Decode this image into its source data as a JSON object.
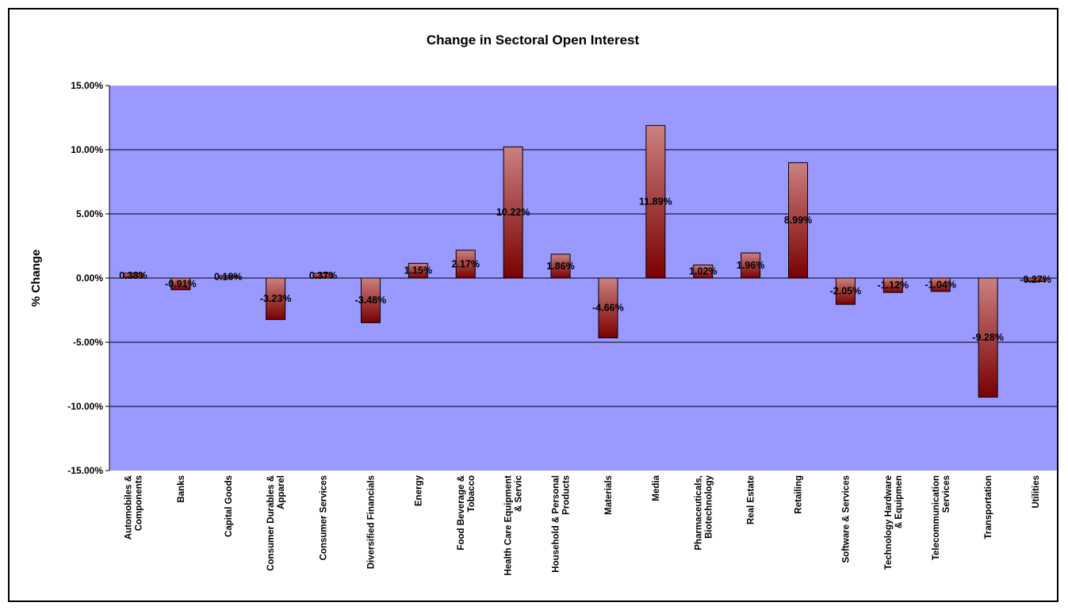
{
  "chart_data": {
    "type": "bar",
    "title": "Change in Sectoral Open Interest",
    "xlabel": "",
    "ylabel": "% Change",
    "ylim": [
      -15,
      15
    ],
    "yticks": [
      "15.00%",
      "10.00%",
      "5.00%",
      "0.00%",
      "-5.00%",
      "-10.00%",
      "-15.00%"
    ],
    "grid": true,
    "legend": "none",
    "categories": [
      [
        "Automobiles &",
        "Components"
      ],
      [
        "Banks"
      ],
      [
        "Capital Goods"
      ],
      [
        "Consumer Durables &",
        "Apparel"
      ],
      [
        "Consumer Services"
      ],
      [
        "Diversified Financials"
      ],
      [
        "Energy"
      ],
      [
        "Food Beverage &",
        "Tobacco"
      ],
      [
        "Health Care Equipment",
        "& Servic"
      ],
      [
        "Household & Personal",
        "Products"
      ],
      [
        "Materials"
      ],
      [
        "Media"
      ],
      [
        "Pharmaceuticals,",
        "Biotechnology"
      ],
      [
        "Real Estate"
      ],
      [
        "Retailing"
      ],
      [
        "Software & Services"
      ],
      [
        "Technology Hardware",
        "& Equipmen"
      ],
      [
        "Telecommunication",
        "Services"
      ],
      [
        "Transportation"
      ],
      [
        "Utilities"
      ]
    ],
    "values": [
      0.38,
      -0.91,
      0.18,
      -3.23,
      0.37,
      -3.48,
      1.15,
      2.17,
      10.22,
      1.86,
      -4.66,
      11.89,
      1.02,
      1.96,
      8.99,
      -2.05,
      -1.12,
      -1.04,
      -9.28,
      -0.27
    ],
    "data_labels": [
      "0.38%",
      "-0.91%",
      "0.18%",
      "-3.23%",
      "0.37%",
      "-3.48%",
      "1.15%",
      "2.17%",
      "10.22%",
      "1.86%",
      "-4.66%",
      "11.89%",
      "1.02%",
      "1.96%",
      "8.99%",
      "-2.05%",
      "-1.12%",
      "-1.04%",
      "-9.28%",
      "-0.27%"
    ],
    "colors": {
      "plot_background": "#9999ff",
      "bar_light": "#cc8080",
      "bar_dark": "#7a0000",
      "gridline": "#000000"
    }
  }
}
